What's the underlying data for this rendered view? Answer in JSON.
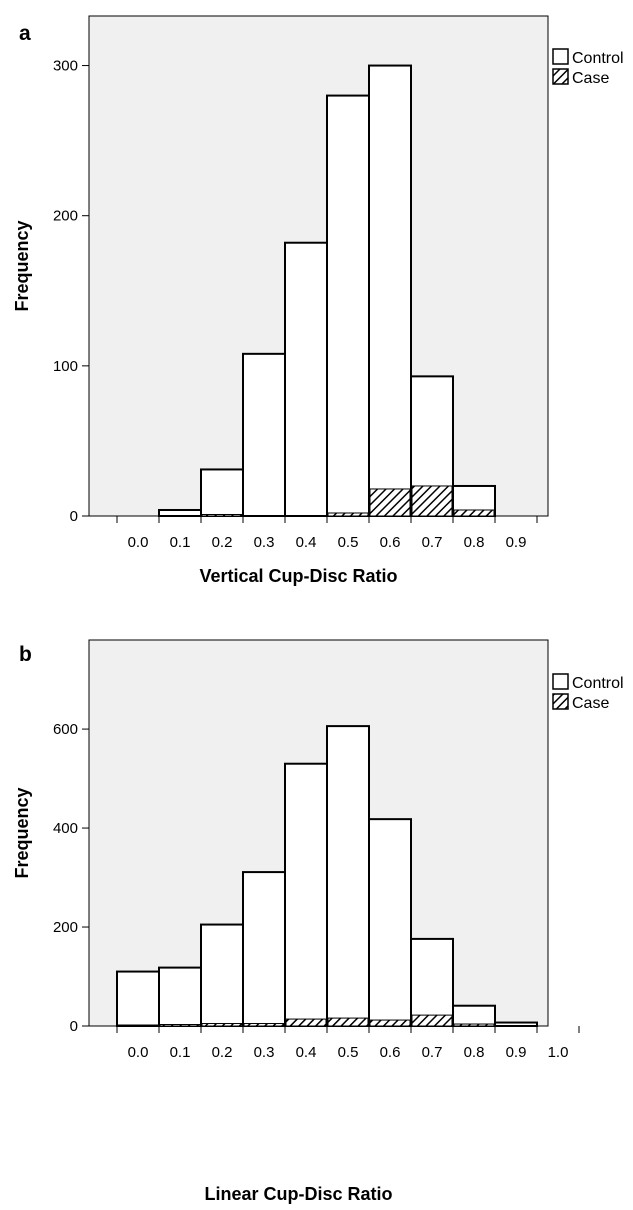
{
  "chart_data": [
    {
      "panel": "a",
      "type": "bar",
      "xlabel": "Vertical Cup-Disc Ratio",
      "ylabel": "Frequency",
      "x_tick_labels": [
        "0.0",
        "0.1",
        "0.2",
        "0.3",
        "0.4",
        "0.5",
        "0.6",
        "0.7",
        "0.8",
        "0.9"
      ],
      "y_ticks": [
        0,
        100,
        200,
        300
      ],
      "ylim": [
        0,
        333
      ],
      "bin_edges": [
        0.1,
        0.2,
        0.3,
        0.4,
        0.5,
        0.6,
        0.7,
        0.8,
        0.9
      ],
      "series": [
        {
          "name": "Control",
          "values": [
            4,
            31,
            108,
            182,
            280,
            300,
            93,
            20
          ]
        },
        {
          "name": "Case",
          "values": [
            0,
            1,
            0,
            0,
            2,
            18,
            20,
            4
          ]
        }
      ],
      "legend": {
        "entries": [
          "Control",
          "Case"
        ],
        "position": "top-right"
      },
      "colors": {
        "control": "#ffffff",
        "case_hatch": "#000000",
        "plot_bg": "#f0f0f0"
      }
    },
    {
      "panel": "b",
      "type": "bar",
      "xlabel": "Linear Cup-Disc Ratio",
      "ylabel": "Frequency",
      "x_tick_labels": [
        "0.0",
        "0.1",
        "0.2",
        "0.3",
        "0.4",
        "0.5",
        "0.6",
        "0.7",
        "0.8",
        "0.9",
        "1.0"
      ],
      "y_ticks": [
        0,
        200,
        400,
        600
      ],
      "ylim": [
        0,
        780
      ],
      "bin_edges": [
        0.0,
        0.1,
        0.2,
        0.3,
        0.4,
        0.5,
        0.6,
        0.7,
        0.8,
        0.9,
        1.0
      ],
      "series": [
        {
          "name": "Control",
          "values": [
            110,
            118,
            205,
            311,
            530,
            606,
            418,
            176,
            41,
            7
          ]
        },
        {
          "name": "Case",
          "values": [
            2,
            3,
            5,
            5,
            14,
            16,
            12,
            22,
            4,
            0
          ]
        }
      ],
      "legend": {
        "entries": [
          "Control",
          "Case"
        ],
        "position": "top-right"
      },
      "colors": {
        "control": "#ffffff",
        "case_hatch": "#000000",
        "plot_bg": "#f0f0f0"
      }
    }
  ]
}
